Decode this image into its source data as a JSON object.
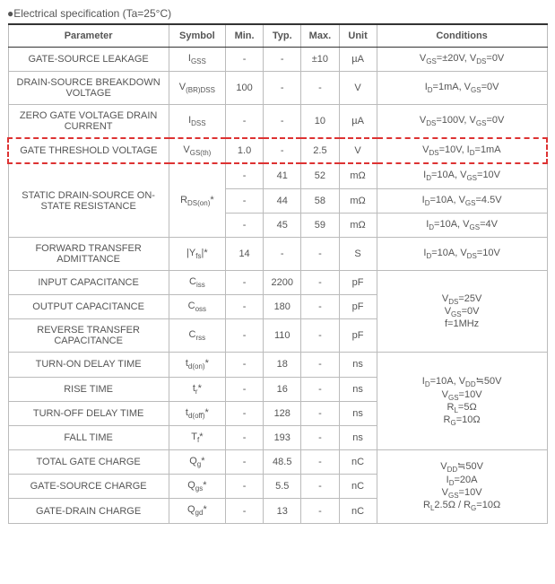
{
  "title": "●Electrical specification (Ta=25°C)",
  "headers": {
    "param": "Parameter",
    "sym": "Symbol",
    "min": "Min.",
    "typ": "Typ.",
    "max": "Max.",
    "unit": "Unit",
    "cond": "Conditions"
  },
  "highlight": {
    "color": "#d33",
    "style": "dashed"
  },
  "rows": {
    "r1": {
      "param": "GATE-SOURCE LEAKAGE",
      "min": "-",
      "typ": "-",
      "max": "±10",
      "unit": "µA"
    },
    "r2": {
      "param": "DRAIN-SOURCE BREAKDOWN VOLTAGE",
      "min": "100",
      "typ": "-",
      "max": "-",
      "unit": "V"
    },
    "r3": {
      "param": "ZERO GATE VOLTAGE DRAIN CURRENT",
      "min": "-",
      "typ": "-",
      "max": "10",
      "unit": "µA"
    },
    "r4": {
      "param": "GATE THRESHOLD VOLTAGE",
      "min": "1.0",
      "typ": "-",
      "max": "2.5",
      "unit": "V"
    },
    "r5a": {
      "param": "STATIC DRAIN-SOURCE ON-STATE RESISTANCE",
      "min": "-",
      "typ": "41",
      "max": "52",
      "unit": "mΩ"
    },
    "r5b": {
      "min": "-",
      "typ": "44",
      "max": "58",
      "unit": "mΩ"
    },
    "r5c": {
      "min": "-",
      "typ": "45",
      "max": "59",
      "unit": "mΩ"
    },
    "r6": {
      "param": "FORWARD TRANSFER ADMITTANCE",
      "min": "14",
      "typ": "-",
      "max": "-",
      "unit": "S"
    },
    "r7": {
      "param": "INPUT CAPACITANCE",
      "min": "-",
      "typ": "2200",
      "max": "-",
      "unit": "pF"
    },
    "r8": {
      "param": "OUTPUT CAPACITANCE",
      "min": "-",
      "typ": "180",
      "max": "-",
      "unit": "pF"
    },
    "r9": {
      "param": "REVERSE TRANSFER CAPACITANCE",
      "min": "-",
      "typ": "110",
      "max": "-",
      "unit": "pF"
    },
    "r10": {
      "param": "TURN-ON DELAY TIME",
      "min": "-",
      "typ": "18",
      "max": "-",
      "unit": "ns"
    },
    "r11": {
      "param": "RISE TIME",
      "min": "-",
      "typ": "16",
      "max": "-",
      "unit": "ns"
    },
    "r12": {
      "param": "TURN-OFF DELAY TIME",
      "min": "-",
      "typ": "128",
      "max": "-",
      "unit": "ns"
    },
    "r13": {
      "param": "FALL TIME",
      "min": "-",
      "typ": "193",
      "max": "-",
      "unit": "ns"
    },
    "r14": {
      "param": "TOTAL GATE CHARGE",
      "min": "-",
      "typ": "48.5",
      "max": "-",
      "unit": "nC"
    },
    "r15": {
      "param": "GATE-SOURCE CHARGE",
      "min": "-",
      "typ": "5.5",
      "max": "-",
      "unit": "nC"
    },
    "r16": {
      "param": "GATE-DRAIN CHARGE",
      "min": "-",
      "typ": "13",
      "max": "-",
      "unit": "nC"
    }
  },
  "symbols_plain": {
    "r1": "IGSS",
    "r2": "V(BR)DSS",
    "r3": "IDSS",
    "r4": "VGS(th)",
    "r5": "RDS(on)*",
    "r6": "|Yfs|*",
    "r7": "Ciss",
    "r8": "Coss",
    "r9": "Crss",
    "r10": "td(on)*",
    "r11": "tr*",
    "r12": "td(off)*",
    "r13": "Tf*",
    "r14": "Qg*",
    "r15": "Qgs*",
    "r16": "Qgd*"
  },
  "conditions_plain": {
    "r1": "VGS=±20V, VDS=0V",
    "r2": "ID=1mA, VGS=0V",
    "r3": "VDS=100V, VGS=0V",
    "r4": "VDS=10V, ID=1mA",
    "r5a": "ID=10A, VGS=10V",
    "r5b": "ID=10A, VGS=4.5V",
    "r5c": "ID=10A, VGS=4V",
    "r6": "ID=10A, VDS=10V",
    "cap_group": "VDS=25V\nVGS=0V\nf=1MHz",
    "time_group": "ID=10A, VDD≒50V\nVGS=10V\nRL=5Ω\nRG=10Ω",
    "charge_group": "VDD≒50V\nID=20A\nVGS=10V\nRL2.5Ω / RG=10Ω"
  },
  "colors": {
    "text": "#555555",
    "border": "#bbbbbb",
    "header_border": "#333333",
    "highlight_border": "#dd3333",
    "background": "#ffffff"
  },
  "font": {
    "family": "Verdana, Arial, sans-serif",
    "size_pt": 11,
    "sub_size_pt": 8
  }
}
